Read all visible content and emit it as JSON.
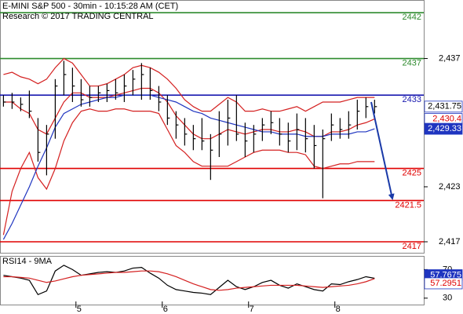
{
  "chart_data": {
    "type": "ohlc",
    "title": "E-MINI S&P 500 - 30min - 10:15:28 AM (CET)",
    "subtitle": "Research © 2017 TRADING CENTRAL",
    "x": [
      4.16,
      4.26,
      4.36,
      4.46,
      4.56,
      4.66,
      4.76,
      4.86,
      4.96,
      5.06,
      5.16,
      5.26,
      5.36,
      5.46,
      5.56,
      5.66,
      5.76,
      5.86,
      5.96,
      6.06,
      6.16,
      6.26,
      6.36,
      6.46,
      6.56,
      6.66,
      6.76,
      6.86,
      6.96,
      7.06,
      7.16,
      7.26,
      7.36,
      7.46,
      7.56,
      7.66,
      7.76,
      7.86,
      7.96,
      8.06,
      8.16,
      8.26,
      8.36,
      8.46
    ],
    "xlim": [
      4.12,
      9.03
    ],
    "xticks": [
      5,
      6,
      7,
      8
    ],
    "ylim": [
      2415.8,
      2443.3
    ],
    "yticks": [
      {
        "value": 2437,
        "label": "2,437"
      },
      {
        "value": 2423,
        "label": "2,423"
      },
      {
        "value": 2417,
        "label": "2,417"
      }
    ],
    "bar_color": "#000000",
    "high": [
      2433,
      2433.25,
      2432.75,
      2433.5,
      2430.5,
      2429.75,
      2434.75,
      2436.75,
      2436,
      2434.75,
      2434,
      2434,
      2434.25,
      2434.75,
      2435.25,
      2435.75,
      2436.5,
      2436,
      2434,
      2433,
      2431.25,
      2430.5,
      2429.75,
      2430.5,
      2428.75,
      2431.25,
      2432.5,
      2433,
      2430,
      2429.75,
      2430.5,
      2431.25,
      2430.5,
      2430,
      2431,
      2430.5,
      2429.75,
      2429.25,
      2431,
      2430.5,
      2431.25,
      2432.5,
      2432.75,
      2432.5
    ],
    "low": [
      2431.75,
      2431.5,
      2431.25,
      2430.5,
      2425.75,
      2424.25,
      2428.25,
      2433,
      2432.25,
      2431.75,
      2431.75,
      2432.25,
      2432.25,
      2432.5,
      2432.25,
      2433,
      2432.5,
      2432.5,
      2431.25,
      2429.75,
      2428.25,
      2427.5,
      2427,
      2427,
      2423.75,
      2426.25,
      2427.5,
      2428,
      2426.25,
      2426.75,
      2428,
      2428.75,
      2427.5,
      2426.75,
      2427,
      2426.75,
      2425,
      2421.75,
      2428,
      2428.25,
      2428.25,
      2429.25,
      2430.5,
      2431
    ],
    "close": [
      2432.25,
      2432.25,
      2432,
      2431.25,
      2426.75,
      2428.75,
      2434,
      2435.25,
      2434,
      2432.5,
      2432.75,
      2433.25,
      2433.5,
      2433.25,
      2434,
      2434.75,
      2435.25,
      2433.5,
      2432.25,
      2430.5,
      2429.75,
      2428.75,
      2428.25,
      2428,
      2427,
      2428.75,
      2430.5,
      2428.75,
      2428,
      2428.75,
      2429.75,
      2430,
      2428.75,
      2428,
      2429.25,
      2428.25,
      2427.5,
      2428.25,
      2429.75,
      2429.25,
      2429.75,
      2431.25,
      2431.75,
      2431.75
    ],
    "overlays": [
      {
        "color": "#d42020",
        "values": [
          2435.25,
          2435.5,
          2435,
          2434.75,
          2434.25,
          2434.75,
          2436,
          2437,
          2436.5,
          2435.25,
          2434,
          2434,
          2434.25,
          2434.75,
          2435.25,
          2436,
          2436.25,
          2436,
          2435.5,
          2434.75,
          2433.75,
          2432.5,
          2431.75,
          2431.25,
          2431.25,
          2432,
          2432.75,
          2432.25,
          2431.25,
          2431.25,
          2431.5,
          2431.25,
          2431.25,
          2431.5,
          2431.75,
          2431.25,
          2431.75,
          2432.25,
          2432.25,
          2432.25,
          2432.5,
          2432.75,
          2432.75,
          2432.75
        ]
      },
      {
        "color": "#d42020",
        "values": [
          2432.25,
          2432.25,
          2431.5,
          2431,
          2429.25,
          2428.75,
          2430.5,
          2432.25,
          2433.25,
          2433.25,
          2432.75,
          2432.75,
          2432.75,
          2433,
          2433.25,
          2433.5,
          2433.75,
          2433.75,
          2433.25,
          2432.25,
          2430.75,
          2429.75,
          2428.75,
          2428.25,
          2428.25,
          2428.75,
          2429.25,
          2429,
          2428.75,
          2429,
          2429.25,
          2429.25,
          2429,
          2429,
          2429.25,
          2429,
          2428.5,
          2428.5,
          2429,
          2429,
          2429.25,
          2429.75,
          2430,
          2430.4
        ]
      },
      {
        "color": "#d42020",
        "values": [
          2417.75,
          2422.5,
          2425,
          2426.75,
          2424,
          2422.75,
          2425,
          2428,
          2430,
          2431.25,
          2431.5,
          2431.25,
          2431.25,
          2431.5,
          2431.5,
          2431.25,
          2431.25,
          2431.25,
          2431,
          2429.25,
          2427.5,
          2426.75,
          2425.75,
          2425.25,
          2425.25,
          2425.25,
          2425.25,
          2425.75,
          2426.25,
          2426.75,
          2427,
          2427,
          2427,
          2426.75,
          2426.75,
          2426.5,
          2425.25,
          2425,
          2425.25,
          2425.5,
          2425.5,
          2425.75,
          2425.75,
          2425.75
        ]
      },
      {
        "color": "#1f35c0",
        "values": [
          2417.25,
          2419,
          2421,
          2423,
          2425.25,
          2427.25,
          2429.5,
          2431,
          2431.5,
          2432,
          2432.25,
          2432.5,
          2432.75,
          2432.75,
          2433,
          2433,
          2433,
          2433,
          2432.75,
          2432.5,
          2432.25,
          2431.75,
          2431.25,
          2431,
          2430.5,
          2430.25,
          2430,
          2429.75,
          2429.5,
          2429.25,
          2429,
          2429,
          2428.75,
          2428.75,
          2428.75,
          2428.5,
          2428.5,
          2428.5,
          2428.75,
          2428.75,
          2428.75,
          2429,
          2429,
          2429.33
        ]
      }
    ],
    "levels": [
      {
        "value": 2442,
        "label": "2442",
        "color": "#2e8b2e"
      },
      {
        "value": 2437,
        "label": "2437",
        "color": "#2e8b2e"
      },
      {
        "value": 2433,
        "label": "2433",
        "color": "#1a1ab0"
      },
      {
        "value": 2425,
        "label": "2425",
        "color": "#e00000"
      },
      {
        "value": 2421.5,
        "label": "2421.5",
        "color": "#e00000"
      },
      {
        "value": 2417,
        "label": "2417",
        "color": "#e00000"
      }
    ],
    "price_labels": [
      {
        "value": 2431.75,
        "label": "2,431.75",
        "color": "#000000",
        "background": "#ffffff"
      },
      {
        "value": 2430.4,
        "label": "2,430.4",
        "color": "#e00000",
        "background": "#ffffff"
      },
      {
        "value": 2429.33,
        "label": "2,429.33",
        "color": "#ffffff",
        "background": "#1f35c0"
      }
    ],
    "indicator": {
      "title": "RSI14 - 9MA",
      "ylim": [
        21,
        88
      ],
      "yticks": [
        70,
        30
      ],
      "series": [
        {
          "color": "#000000",
          "values": [
            62,
            60,
            58,
            55,
            35,
            40,
            68,
            76,
            70,
            62,
            64,
            66,
            67,
            66,
            68,
            72,
            73,
            65,
            58,
            48,
            42,
            40,
            38,
            37,
            35,
            45,
            55,
            46,
            42,
            46,
            52,
            55,
            48,
            44,
            50,
            46,
            42,
            40,
            50,
            49,
            53,
            56,
            60,
            57.7675
          ]
        },
        {
          "color": "#d42020",
          "values": [
            60,
            60,
            59,
            58,
            55,
            52,
            54,
            57,
            60,
            62,
            63,
            64,
            65,
            66,
            66,
            67,
            68,
            68,
            67,
            64,
            60,
            55,
            50,
            46,
            42,
            41,
            42,
            44,
            45,
            46,
            47,
            48,
            48,
            48,
            48,
            47,
            46,
            45,
            46,
            47,
            48,
            50,
            53,
            57.2951
          ]
        }
      ],
      "value_labels": [
        {
          "value": 57.7675,
          "label": "57.7675",
          "color": "#ffffff",
          "background": "#1f35c0"
        },
        {
          "value": 57.2951,
          "label": "57.2951",
          "color": "#e00000",
          "background": "#ffffff"
        }
      ]
    }
  }
}
